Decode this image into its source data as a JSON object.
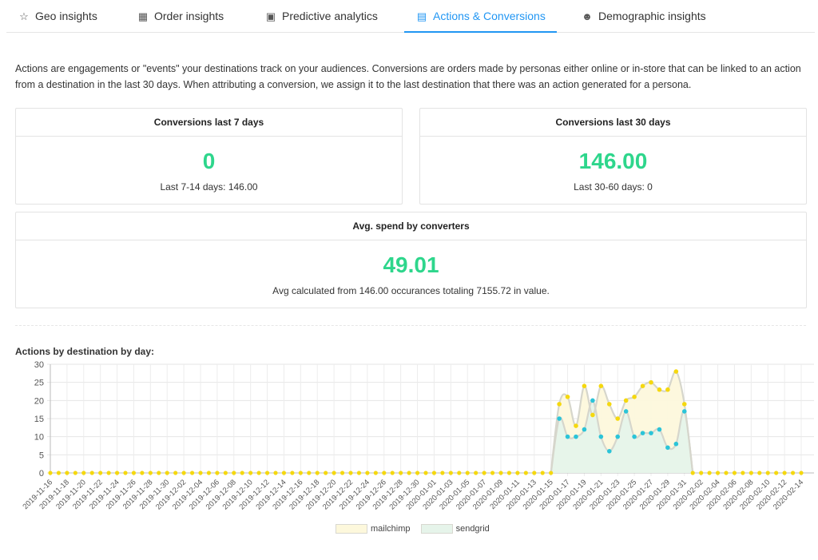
{
  "tabs": [
    {
      "label": "Geo insights",
      "icon": "pin-icon",
      "active": false
    },
    {
      "label": "Order insights",
      "icon": "store-icon",
      "active": false
    },
    {
      "label": "Predictive analytics",
      "icon": "analytics-icon",
      "active": false
    },
    {
      "label": "Actions & Conversions",
      "icon": "document-icon",
      "active": true
    },
    {
      "label": "Demographic insights",
      "icon": "person-icon",
      "active": false
    }
  ],
  "intro": "Actions are engagements or \"events\" your destinations track on your audiences. Conversions are orders made by personas either online or in-store that can be linked to an action from a destination in the last 30 days. When attributing a conversion, we assign it to the last destination that there was an action generated for a persona.",
  "cards": {
    "conv7": {
      "title": "Conversions last 7 days",
      "value": "0",
      "sub": "Last 7-14 days: 146.00"
    },
    "conv30": {
      "title": "Conversions last 30 days",
      "value": "146.00",
      "sub": "Last 30-60 days: 0"
    },
    "avg": {
      "title": "Avg. spend by converters",
      "value": "49.01",
      "sub": "Avg calculated from 146.00 occurances totaling 7155.72 in value."
    }
  },
  "accent_color": "#2ed68c",
  "tab_active_color": "#2196f3",
  "chart_title": "Actions by destination by day:",
  "chart_data": {
    "type": "area",
    "start_date": "2019-11-16",
    "end_date": "2020-02-14",
    "x_tick_labels": [
      "2019-11-16",
      "2019-11-18",
      "2019-11-20",
      "2019-11-22",
      "2019-11-24",
      "2019-11-26",
      "2019-11-28",
      "2019-11-30",
      "2019-12-02",
      "2019-12-04",
      "2019-12-06",
      "2019-12-08",
      "2019-12-10",
      "2019-12-12",
      "2019-12-14",
      "2019-12-16",
      "2019-12-18",
      "2019-12-20",
      "2019-12-22",
      "2019-12-24",
      "2019-12-26",
      "2019-12-28",
      "2019-12-30",
      "2020-01-01",
      "2020-01-03",
      "2020-01-05",
      "2020-01-07",
      "2020-01-09",
      "2020-01-11",
      "2020-01-13",
      "2020-01-15",
      "2020-01-17",
      "2020-01-19",
      "2020-01-21",
      "2020-01-23",
      "2020-01-25",
      "2020-01-27",
      "2020-01-29",
      "2020-01-31",
      "2020-02-02",
      "2020-02-04",
      "2020-02-06",
      "2020-02-08",
      "2020-02-10",
      "2020-02-12",
      "2020-02-14"
    ],
    "ylim": [
      0,
      30
    ],
    "y_ticks": [
      0,
      5,
      10,
      15,
      20,
      25,
      30
    ],
    "grid": true,
    "legend_position": "bottom",
    "series": [
      {
        "name": "mailchimp",
        "line_color": "#f5d80f",
        "fill_color": "#fdf8dc",
        "points": [
          {
            "x": "2020-01-15",
            "y": 0
          },
          {
            "x": "2020-01-16",
            "y": 19
          },
          {
            "x": "2020-01-17",
            "y": 21
          },
          {
            "x": "2020-01-18",
            "y": 13
          },
          {
            "x": "2020-01-19",
            "y": 24
          },
          {
            "x": "2020-01-20",
            "y": 16
          },
          {
            "x": "2020-01-21",
            "y": 24
          },
          {
            "x": "2020-01-22",
            "y": 19
          },
          {
            "x": "2020-01-23",
            "y": 15
          },
          {
            "x": "2020-01-24",
            "y": 20
          },
          {
            "x": "2020-01-25",
            "y": 21
          },
          {
            "x": "2020-01-26",
            "y": 24
          },
          {
            "x": "2020-01-27",
            "y": 25
          },
          {
            "x": "2020-01-28",
            "y": 23
          },
          {
            "x": "2020-01-29",
            "y": 23
          },
          {
            "x": "2020-01-30",
            "y": 28
          },
          {
            "x": "2020-01-31",
            "y": 19
          },
          {
            "x": "2020-02-01",
            "y": 0
          }
        ],
        "baseline": 0
      },
      {
        "name": "sendgrid",
        "line_color": "#2bc4d8",
        "fill_color": "#e6f4ea",
        "points": [
          {
            "x": "2020-01-15",
            "y": 0
          },
          {
            "x": "2020-01-16",
            "y": 15
          },
          {
            "x": "2020-01-17",
            "y": 10
          },
          {
            "x": "2020-01-18",
            "y": 10
          },
          {
            "x": "2020-01-19",
            "y": 12
          },
          {
            "x": "2020-01-20",
            "y": 20
          },
          {
            "x": "2020-01-21",
            "y": 10
          },
          {
            "x": "2020-01-22",
            "y": 6
          },
          {
            "x": "2020-01-23",
            "y": 10
          },
          {
            "x": "2020-01-24",
            "y": 17
          },
          {
            "x": "2020-01-25",
            "y": 10
          },
          {
            "x": "2020-01-26",
            "y": 11
          },
          {
            "x": "2020-01-27",
            "y": 11
          },
          {
            "x": "2020-01-28",
            "y": 12
          },
          {
            "x": "2020-01-29",
            "y": 7
          },
          {
            "x": "2020-01-30",
            "y": 8
          },
          {
            "x": "2020-01-31",
            "y": 17
          },
          {
            "x": "2020-02-01",
            "y": 0
          }
        ],
        "baseline": 0
      }
    ]
  }
}
